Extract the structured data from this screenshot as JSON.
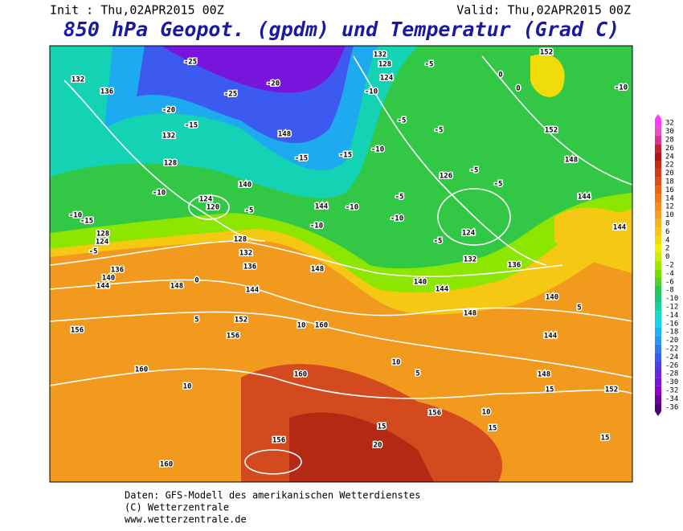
{
  "header": {
    "init": "Init : Thu,02APR2015 00Z",
    "valid": "Valid: Thu,02APR2015 00Z",
    "title": "850 hPa Geopot. (gpdm) und Temperatur (Grad C)"
  },
  "map": {
    "labels": [
      132,
      136,
      -20,
      -15,
      132,
      128,
      -10,
      -10,
      -15,
      128,
      124,
      -5,
      136,
      140,
      144,
      148,
      0,
      120,
      124,
      128,
      132,
      136,
      140,
      144,
      5,
      152,
      156,
      156,
      10,
      160,
      160,
      10,
      160,
      160,
      156,
      15,
      20,
      156,
      10,
      15,
      15,
      148,
      152,
      15,
      -5,
      132,
      128,
      124,
      -10,
      -5,
      -5,
      -10,
      126,
      -5,
      -5,
      144,
      148,
      152,
      152,
      0,
      0,
      -10,
      -5,
      -10,
      -5,
      124,
      132,
      136,
      140,
      144,
      148,
      144,
      140,
      5,
      10,
      5,
      -25,
      -25,
      -20,
      148,
      -15,
      -15,
      144,
      -10,
      -10,
      -5,
      148,
      144
    ]
  },
  "colorbar": {
    "labels": [
      32,
      30,
      28,
      26,
      24,
      22,
      20,
      18,
      16,
      14,
      12,
      10,
      8,
      6,
      4,
      2,
      0,
      -2,
      -4,
      -6,
      -8,
      -10,
      -12,
      -14,
      -16,
      -18,
      -20,
      -22,
      -24,
      -26,
      -28,
      -30,
      -32,
      -34,
      -36
    ],
    "colors": [
      "#ff3cff",
      "#e64fc0",
      "#d8368a",
      "#c81e3c",
      "#b41414",
      "#c82814",
      "#d23c14",
      "#dc5014",
      "#e66414",
      "#f07814",
      "#f58c1e",
      "#f5a01e",
      "#f5b41e",
      "#f5c814",
      "#f0dc0a",
      "#f0f000",
      "#c8f000",
      "#a0e600",
      "#78dc00",
      "#50d228",
      "#28c850",
      "#14c878",
      "#14d2a0",
      "#14dcc8",
      "#14d2f0",
      "#1eb4f0",
      "#2896f0",
      "#3278f0",
      "#3c5af0",
      "#4b3cf0",
      "#6428e6",
      "#7814dc",
      "#8c00c8",
      "#6e00a0",
      "#500078"
    ]
  },
  "footer": {
    "line1": "Daten: GFS-Modell des amerikanischen Wetterdienstes",
    "line2": "(C) Wetterzentrale",
    "line3": "www.wetterzentrale.de"
  }
}
